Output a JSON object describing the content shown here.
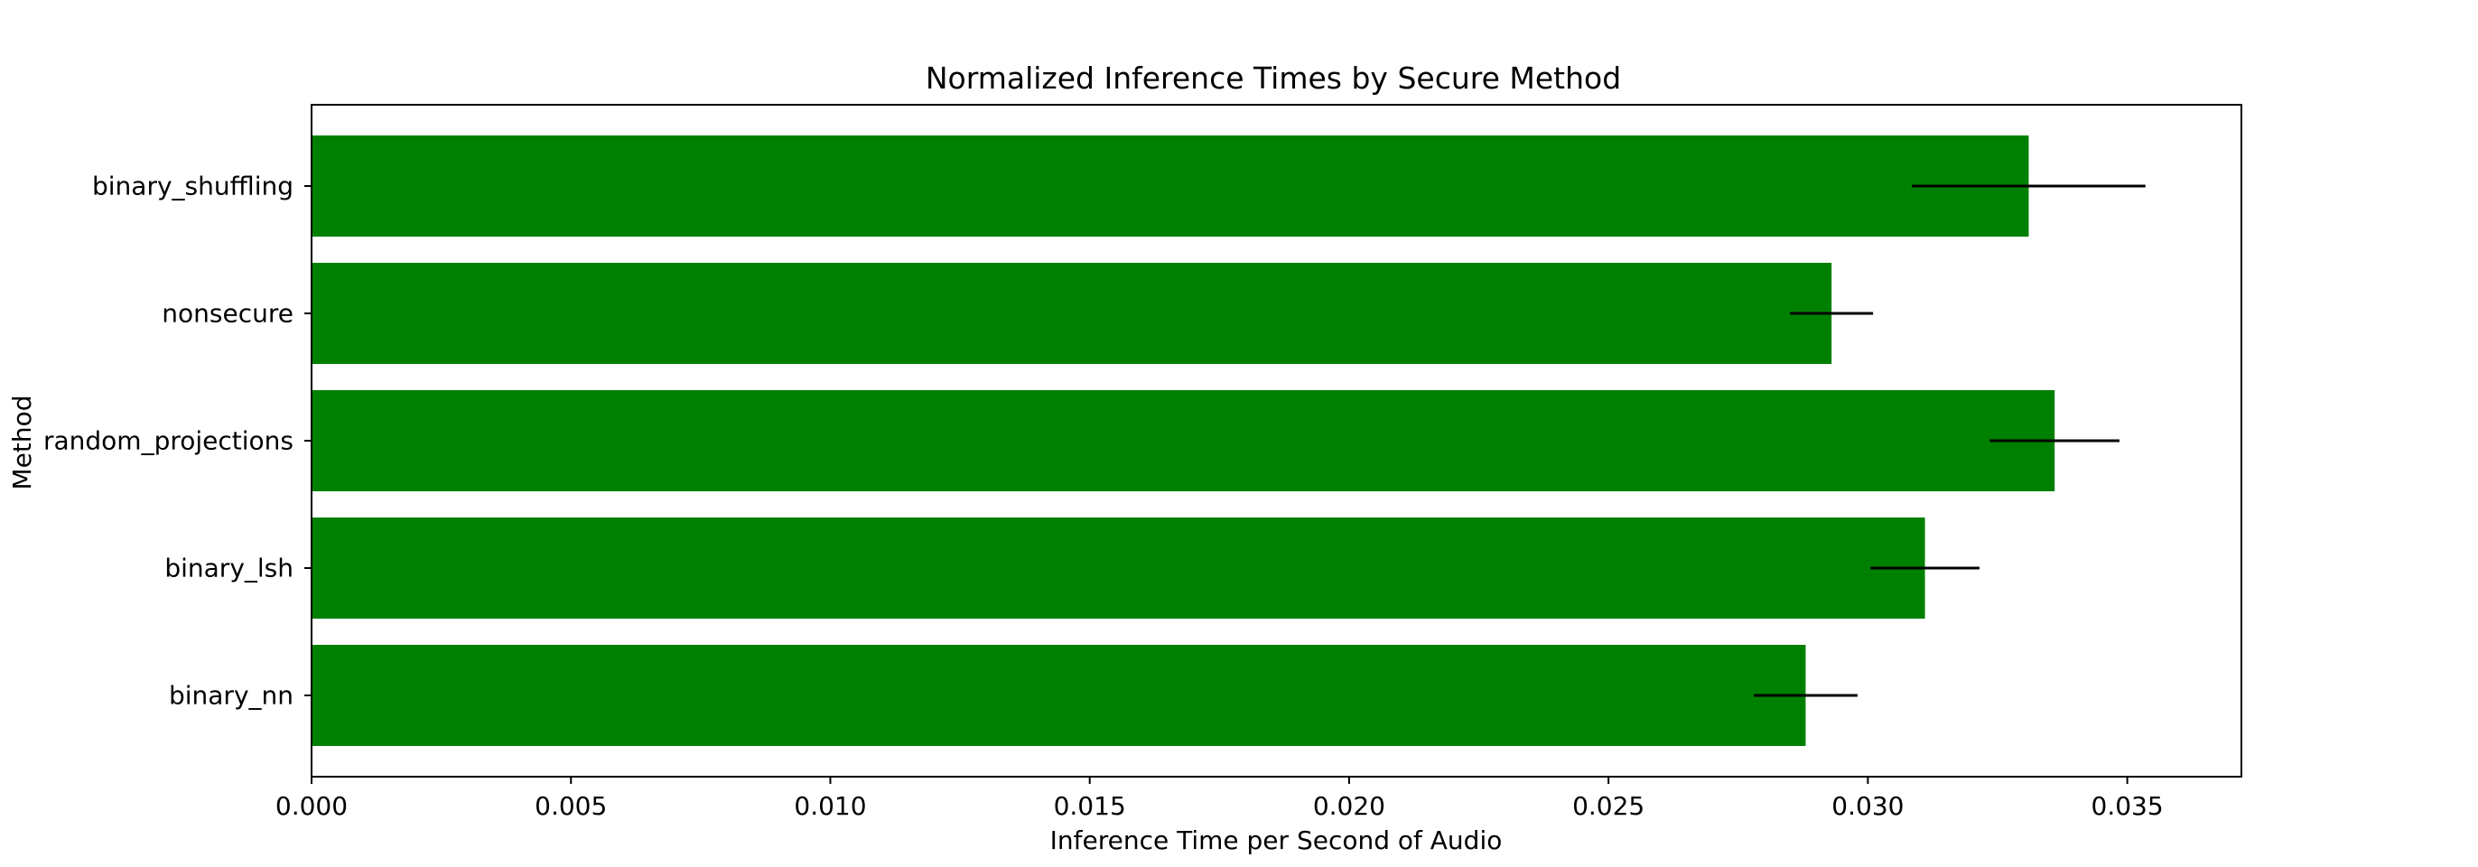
{
  "chart_data": {
    "type": "bar",
    "orientation": "horizontal",
    "title": "Normalized Inference Times by Secure Method",
    "xlabel": "Inference Time per Second of Audio",
    "ylabel": "Method",
    "categories": [
      "binary_shuffling",
      "nonsecure",
      "random_projections",
      "binary_lsh",
      "binary_nn"
    ],
    "values": [
      0.0331,
      0.0293,
      0.0336,
      0.0311,
      0.0288
    ],
    "errors": [
      0.00225,
      0.0008,
      0.00125,
      0.00105,
      0.001
    ],
    "xlim": [
      0,
      0.0372
    ],
    "xticks": [
      "0.000",
      "0.005",
      "0.010",
      "0.015",
      "0.020",
      "0.025",
      "0.030",
      "0.035"
    ],
    "grid": false,
    "bar_color": "#008000",
    "error_color": "#000000"
  }
}
